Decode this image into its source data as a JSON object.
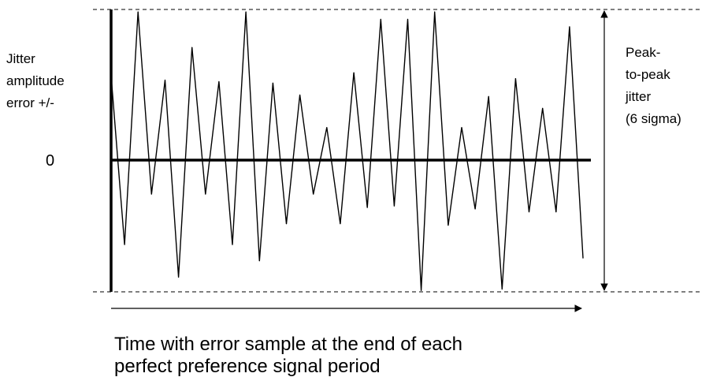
{
  "labels": {
    "y_label_lines": [
      "Jitter",
      "amplitude",
      "error +/-"
    ],
    "zero_label": "0",
    "peak_label_lines": [
      "Peak-",
      "to-peak",
      "jitter",
      "(6 sigma)"
    ],
    "caption_lines": [
      "Time with error sample at the end of each",
      "perfect preference signal period"
    ]
  },
  "colors": {
    "ink": "#000000",
    "background": "#ffffff"
  },
  "chart_data": {
    "type": "line",
    "title": "",
    "xlabel": "Time with error sample at the end of each perfect preference signal period",
    "ylabel": "Jitter amplitude error +/-",
    "y_zero_label": "0",
    "ylim": [
      -1,
      1
    ],
    "grid": false,
    "series": [
      {
        "values": [
          0.57,
          -0.57,
          1.0,
          -0.23,
          0.54,
          -0.79,
          0.76,
          -0.23,
          0.53,
          -0.57,
          1.0,
          -0.68,
          0.52,
          -0.43,
          0.44,
          -0.23,
          0.22,
          -0.43,
          0.59,
          -0.32,
          0.95,
          -0.31,
          0.95,
          -0.88,
          1.0,
          -0.44,
          0.22,
          -0.33,
          0.43,
          -0.87,
          0.55,
          -0.35,
          0.35,
          -0.35,
          0.9,
          -0.66
        ]
      }
    ],
    "annotations": [
      "Peak-to-peak jitter (6 sigma)"
    ]
  }
}
